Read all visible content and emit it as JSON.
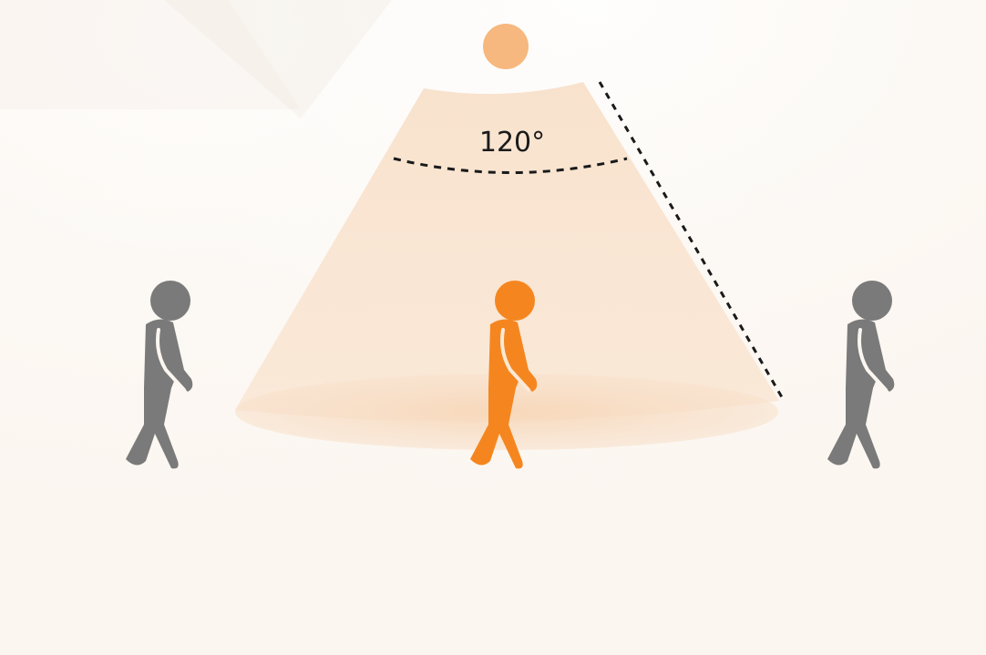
{
  "detection_angle": {
    "label": "120°"
  },
  "colors": {
    "background": "#fbf6f0",
    "sensor": "#f6b87e",
    "detection_cone": "#f8e3cf",
    "floor_ellipse": "#f6d8bb",
    "person_active": "#f5861f",
    "person_inactive": "#7a7a7a",
    "dashed_lines": "#1a1a1a"
  },
  "icons": {
    "sensor": "motion-sensor-dot-icon",
    "person_left": "walking-person-icon",
    "person_center": "walking-person-icon",
    "person_right": "walking-person-icon"
  }
}
